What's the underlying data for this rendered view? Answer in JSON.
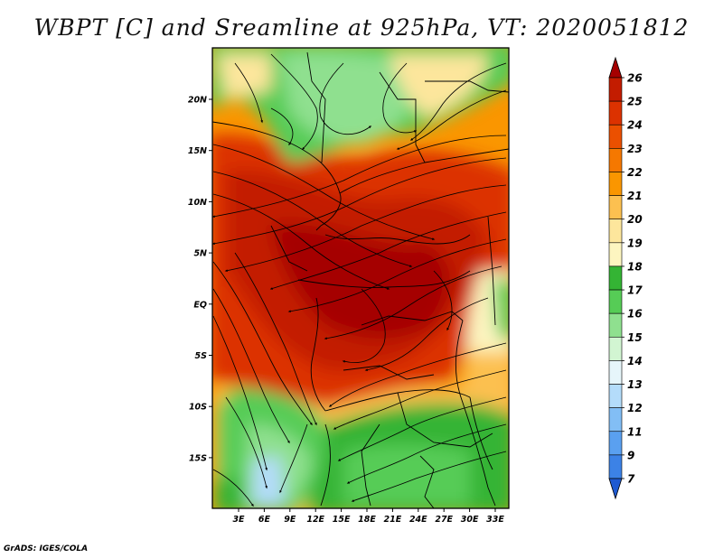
{
  "title": "WBPT [C] and Sreamline at 925hPa, VT: 2020051812",
  "credit": "GrADS: IGES/COLA",
  "lat_ticks": [
    "20N",
    "15N",
    "10N",
    "5N",
    "EQ",
    "5S",
    "10S",
    "15S"
  ],
  "lon_ticks": [
    "3E",
    "6E",
    "9E",
    "12E",
    "15E",
    "18E",
    "21E",
    "24E",
    "27E",
    "30E",
    "33E"
  ],
  "colorbar": {
    "labels": [
      "26",
      "25",
      "24",
      "23",
      "22",
      "21",
      "20",
      "19",
      "18",
      "17",
      "16",
      "15",
      "14",
      "13",
      "12",
      "11",
      "9",
      "7"
    ],
    "colors": [
      "#a50000",
      "#c31c00",
      "#dc3200",
      "#eb5000",
      "#f57800",
      "#fa9600",
      "#fcc050",
      "#fde69c",
      "#fdf5c0",
      "#34b434",
      "#56cc56",
      "#8fe08f",
      "#d2f5d2",
      "#e6f5fa",
      "#b4dcfa",
      "#82bef5",
      "#5aa0f0",
      "#3c82e6",
      "#1e5ad2"
    ]
  }
}
